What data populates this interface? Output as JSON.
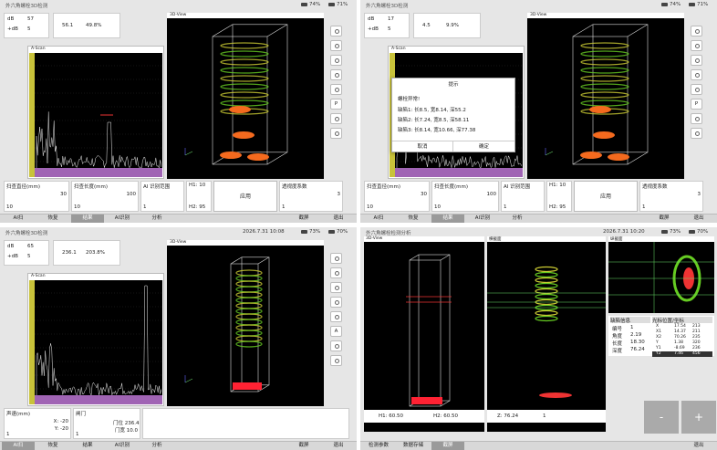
{
  "panels": [
    {
      "title": "外六角螺栓3D检测",
      "status": [
        "74%",
        "71%"
      ],
      "readout": {
        "db_label": "dB",
        "db": 57,
        "gain_label": "+dB",
        "gain": 5,
        "peak": "56.1",
        "amp": "49.8%"
      },
      "ascan_title": "A-Scan",
      "view_title": "3D-View",
      "tool_label": "P",
      "fields": [
        {
          "label": "扫查直径(mm)",
          "right": "30",
          "left": "10"
        },
        {
          "label": "扫查长度(mm)",
          "right": "100",
          "left": "10"
        },
        {
          "label": "AI 识别范围",
          "left": "1"
        },
        {
          "label": "H1: 10",
          "left": "H2: 95"
        },
        {
          "button": "应用"
        },
        {
          "label": "透视度系数",
          "right": "3",
          "left": "1"
        }
      ],
      "tabs": [
        "AI扫",
        "恢复",
        "结果",
        "AI识别",
        "分析"
      ],
      "active_tab": 2,
      "right_tabs": [
        "截屏",
        "退出"
      ]
    },
    {
      "title": "外六角螺栓3D检测",
      "status": [
        "74%",
        "71%"
      ],
      "readout": {
        "db_label": "dB",
        "db": 17,
        "gain_label": "+dB",
        "gain": 5,
        "peak": "4.5",
        "amp": "9.9%"
      },
      "ascan_title": "A-Scan",
      "view_title": "3D-View",
      "tool_label": "P",
      "fields": [
        {
          "label": "扫查直径(mm)",
          "right": "30",
          "left": "10"
        },
        {
          "label": "扫查长度(mm)",
          "right": "100",
          "left": "10"
        },
        {
          "label": "AI 识别范围",
          "left": "1"
        },
        {
          "label": "H1: 10",
          "left": "H2: 95"
        },
        {
          "button": "应用"
        },
        {
          "label": "透视度系数",
          "right": "3",
          "left": "1"
        }
      ],
      "tabs": [
        "AI扫",
        "恢复",
        "结果",
        "AI识别",
        "分析"
      ],
      "active_tab": 2,
      "right_tabs": [
        "截屏",
        "退出"
      ],
      "dialog": {
        "title": "提示",
        "message": "螺栓异常!",
        "lines": [
          "缺陷1: 长8.5, 宽8.14, 深55.2",
          "缺陷2: 长7.24, 宽8.5, 深58.11",
          "缺陷3: 长8.14, 宽10.66, 深77.38"
        ],
        "buttons": [
          "取消",
          "确定"
        ]
      }
    },
    {
      "title": "外六角螺栓3D检测",
      "status": [
        "73%",
        "70%"
      ],
      "time": "2026.7.31 10:08",
      "readout": {
        "db_label": "dB",
        "db": 65,
        "gain_label": "+dB",
        "gain": 5,
        "peak": "236.1",
        "amp": "203.8%"
      },
      "ascan_title": "A-Scan",
      "view_title": "3D-View",
      "tool_label": "A",
      "fields": [
        {
          "label": "声速(mm)",
          "right": "X: -20",
          "left": "1",
          "extra": "Y: -20"
        },
        {
          "label": "闸门",
          "right": "门位 236.4",
          "left": "1",
          "extra": "门宽 10.0"
        }
      ],
      "tabs": [
        "AI扫",
        "恢复",
        "结果",
        "AI识别",
        "分析"
      ],
      "active_tab": 0,
      "right_tabs": [
        "截屏",
        "退出"
      ]
    }
  ],
  "analysis": {
    "title": "外六角螺栓检测分析",
    "status": [
      "73%",
      "70%"
    ],
    "time": "2026.7.31 10:20",
    "view_title": "3D-View",
    "h1": "H1: 60.50",
    "h2": "H2: 60.50",
    "section_title": "横截面",
    "z": "Z: 76.24",
    "layer": "1",
    "long_title": "纵截面",
    "defect_title": "缺陷信息",
    "defect_rows": [
      [
        "编号",
        "1"
      ],
      [
        "角度",
        "2.19"
      ],
      [
        "长度",
        "18.30"
      ],
      [
        "深度",
        "76.24"
      ]
    ],
    "cursor_title": "光标位置/坐标",
    "cursor_rows": [
      [
        "X",
        "17.54",
        "213"
      ],
      [
        "X1",
        "14.37",
        "211"
      ],
      [
        "X2",
        "70.26",
        "235"
      ],
      [
        "Y",
        "1.38",
        "320"
      ],
      [
        "Y1",
        "-8.69",
        "236"
      ],
      [
        "Y2",
        "7.46",
        "456"
      ]
    ],
    "minus": "-",
    "plus": "+",
    "tabs": [
      "检测参数",
      "数据存储",
      "截屏"
    ],
    "active_tab": 2,
    "right_tabs": [
      "退出"
    ]
  }
}
